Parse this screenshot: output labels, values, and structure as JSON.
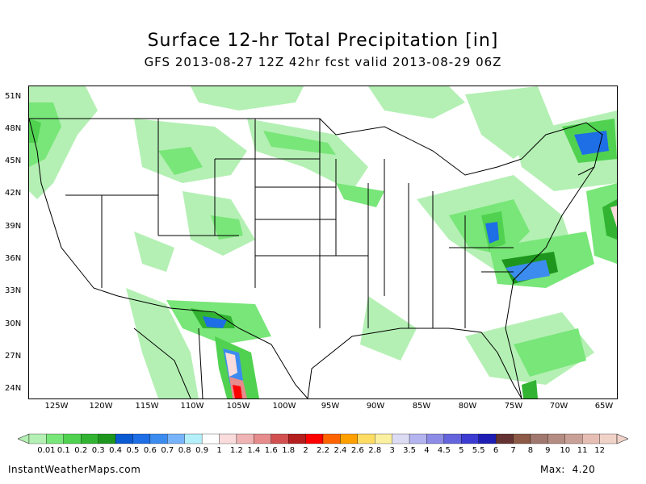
{
  "header": {
    "title": "Surface 12-hr Total Precipitation [in]",
    "subtitle": "GFS 2013-08-27 12Z 42hr fcst valid 2013-08-29 06Z"
  },
  "map": {
    "lat_labels": [
      "51N",
      "48N",
      "45N",
      "42N",
      "39N",
      "36N",
      "33N",
      "30N",
      "27N",
      "24N"
    ],
    "lon_labels": [
      "125W",
      "120W",
      "115W",
      "110W",
      "105W",
      "100W",
      "95W",
      "90W",
      "85W",
      "80W",
      "75W",
      "70W",
      "65W"
    ]
  },
  "legend": {
    "labels": [
      "0.01",
      "0.1",
      "0.2",
      "0.3",
      "0.4",
      "0.5",
      "0.6",
      "0.7",
      "0.8",
      "0.9",
      "1",
      "1.2",
      "1.4",
      "1.6",
      "1.8",
      "2",
      "2.2",
      "2.4",
      "2.6",
      "2.8",
      "3",
      "3.5",
      "4",
      "4.5",
      "5",
      "5.5",
      "6",
      "7",
      "8",
      "9",
      "10",
      "11",
      "12"
    ],
    "colors": [
      "#b4f0b4",
      "#78e678",
      "#50d250",
      "#32b432",
      "#1e961e",
      "#0a5ad2",
      "#1e6ee6",
      "#3c8cf0",
      "#78b4fa",
      "#b4f0fa",
      "#ffffff",
      "#fadcdc",
      "#f0b4b4",
      "#e68c8c",
      "#d25050",
      "#b41e1e",
      "#ff0000",
      "#ff6400",
      "#ffa000",
      "#ffdc64",
      "#faf0a0",
      "#dcdcf5",
      "#b4b4f0",
      "#8c8ce6",
      "#6464dc",
      "#3c3cd2",
      "#1e1eb4",
      "#643232",
      "#8c5a46",
      "#a0786e",
      "#b48c82",
      "#c8a096",
      "#e6beb4",
      "#f0d2c8"
    ]
  },
  "footer": {
    "source": "InstantWeatherMaps.com",
    "max_label": "Max:",
    "max_value": "4.20"
  }
}
